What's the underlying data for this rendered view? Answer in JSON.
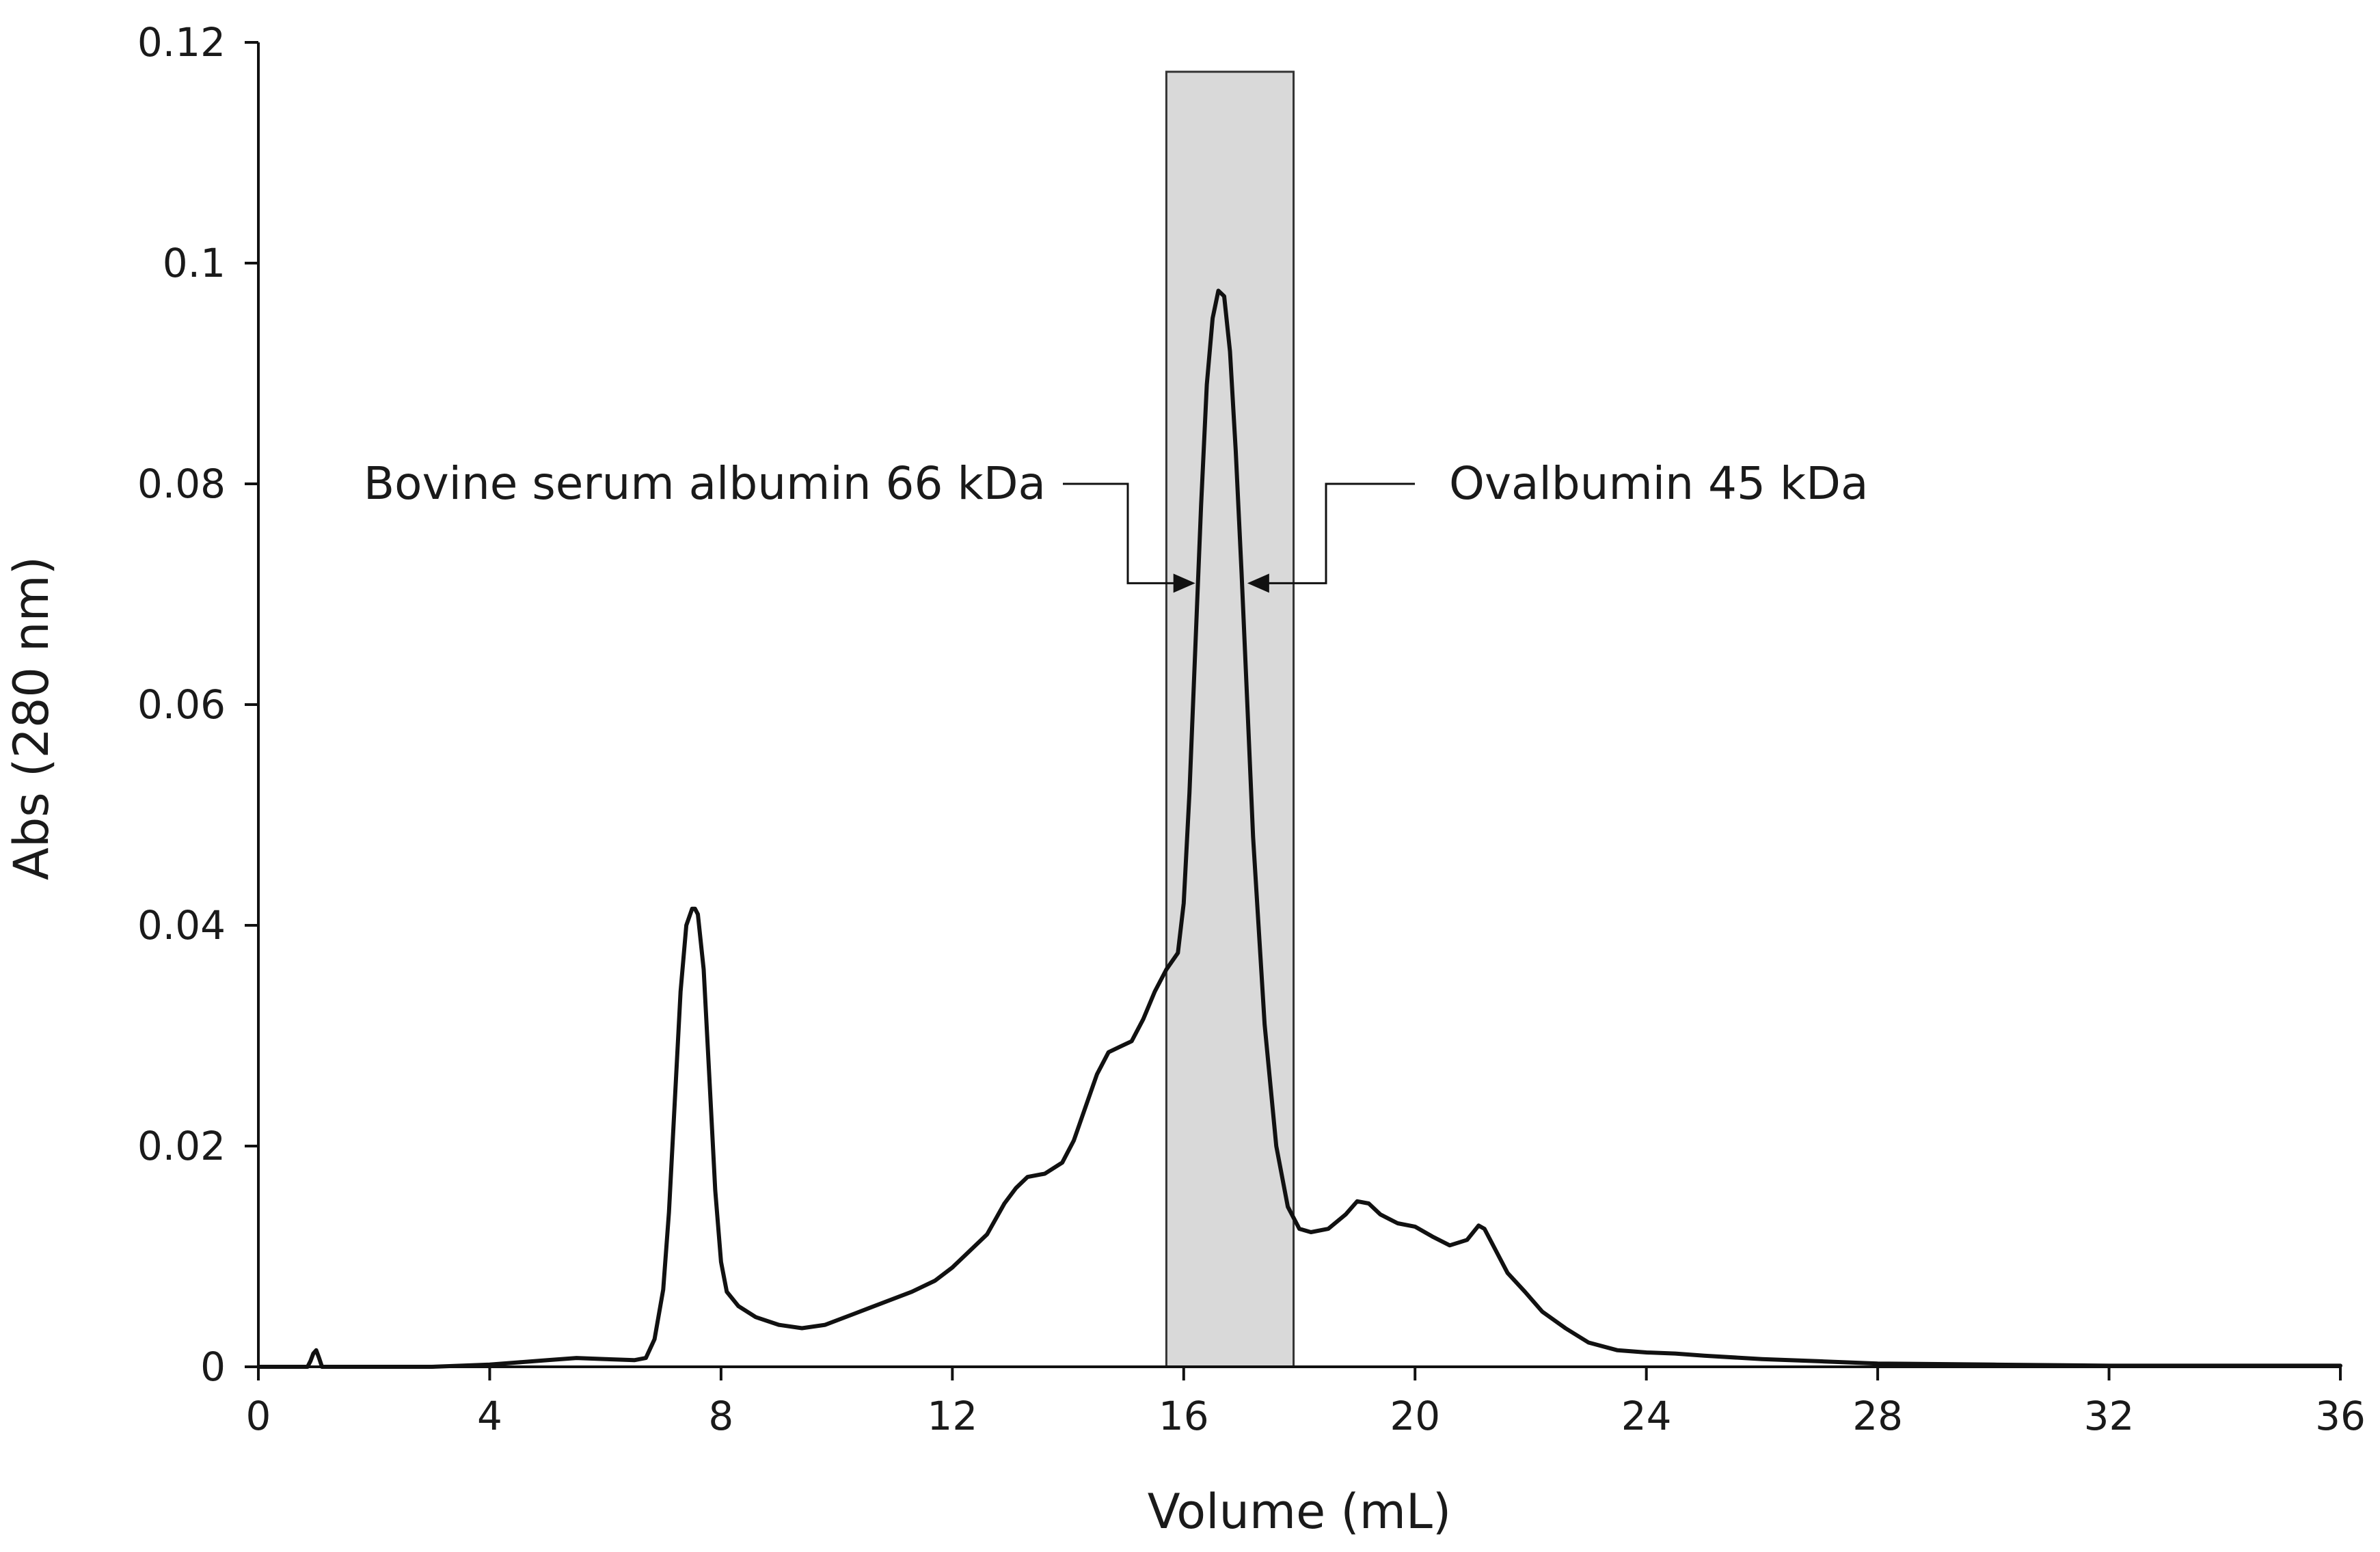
{
  "chart_data": {
    "type": "line",
    "title": "",
    "xlabel": "Volume (mL)",
    "ylabel": "Abs (280 nm)",
    "xlim": [
      0,
      36
    ],
    "ylim": [
      0,
      0.12
    ],
    "x_ticks": [
      0,
      4,
      8,
      12,
      16,
      20,
      24,
      28,
      32,
      36
    ],
    "x_tick_labels": [
      "0",
      "4",
      "8",
      "12",
      "16",
      "20",
      "24",
      "28",
      "32",
      "36"
    ],
    "y_ticks": [
      0,
      0.02,
      0.04,
      0.06,
      0.08,
      0.1,
      0.12
    ],
    "y_tick_labels": [
      "0",
      "0.02",
      "0.04",
      "0.06",
      "0.08",
      "0.1",
      "0.12"
    ],
    "grid": false,
    "legend": "none",
    "shaded_region": {
      "x_start": 15.7,
      "x_end": 17.9,
      "color": "#d9d9d9"
    },
    "annotations": [
      {
        "text": "Bovine serum albumin 66 kDa",
        "x": 16.2,
        "y": 0.071
      },
      {
        "text": "Ovalbumin 45 kDa",
        "x": 17.1,
        "y": 0.071
      }
    ],
    "series": [
      {
        "color": "#111111",
        "x": [
          0,
          0.85,
          0.9,
          0.95,
          1.0,
          1.05,
          1.1,
          2,
          3,
          4,
          4.5,
          5,
          5.5,
          6,
          6.5,
          6.7,
          6.85,
          7.0,
          7.1,
          7.2,
          7.3,
          7.4,
          7.5,
          7.55,
          7.6,
          7.7,
          7.8,
          7.9,
          8.0,
          8.1,
          8.3,
          8.6,
          9.0,
          9.4,
          9.8,
          10.3,
          10.8,
          11.3,
          11.7,
          12.0,
          12.3,
          12.6,
          12.9,
          13.1,
          13.3,
          13.6,
          13.9,
          14.1,
          14.3,
          14.5,
          14.7,
          14.9,
          15.1,
          15.3,
          15.5,
          15.7,
          15.9,
          16.0,
          16.1,
          16.2,
          16.3,
          16.4,
          16.5,
          16.6,
          16.7,
          16.8,
          16.9,
          17.0,
          17.1,
          17.2,
          17.4,
          17.6,
          17.8,
          18.0,
          18.2,
          18.5,
          18.8,
          19.0,
          19.2,
          19.4,
          19.7,
          20.0,
          20.3,
          20.6,
          20.9,
          21.1,
          21.2,
          21.4,
          21.6,
          21.9,
          22.2,
          22.6,
          23.0,
          23.5,
          24.0,
          24.5,
          25.0,
          26,
          27,
          28,
          30,
          32,
          34,
          36
        ],
        "y": [
          0,
          0,
          0.0005,
          0.0012,
          0.0015,
          0.0008,
          0,
          0,
          0,
          0.0002,
          0.0004,
          0.0006,
          0.0008,
          0.0007,
          0.0006,
          0.0008,
          0.0025,
          0.007,
          0.014,
          0.024,
          0.034,
          0.04,
          0.0415,
          0.0415,
          0.041,
          0.036,
          0.026,
          0.016,
          0.0095,
          0.0068,
          0.0055,
          0.0045,
          0.0038,
          0.0035,
          0.0038,
          0.0048,
          0.0058,
          0.0068,
          0.0078,
          0.009,
          0.0105,
          0.012,
          0.0148,
          0.0162,
          0.0172,
          0.0175,
          0.0185,
          0.0205,
          0.0235,
          0.0265,
          0.0285,
          0.029,
          0.0295,
          0.0315,
          0.034,
          0.036,
          0.0375,
          0.042,
          0.052,
          0.065,
          0.078,
          0.089,
          0.095,
          0.0975,
          0.097,
          0.092,
          0.083,
          0.072,
          0.06,
          0.048,
          0.031,
          0.02,
          0.0145,
          0.0125,
          0.0122,
          0.0125,
          0.0138,
          0.015,
          0.0148,
          0.0138,
          0.013,
          0.0127,
          0.0118,
          0.011,
          0.0115,
          0.0128,
          0.0125,
          0.0105,
          0.0085,
          0.0068,
          0.005,
          0.0035,
          0.0022,
          0.0015,
          0.0013,
          0.0012,
          0.001,
          0.0007,
          0.0005,
          0.0003,
          0.0002,
          0.0001,
          0.0001,
          0.0001
        ]
      }
    ]
  }
}
